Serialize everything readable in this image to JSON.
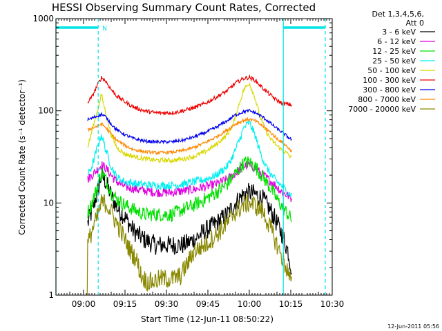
{
  "chart_data": {
    "type": "line",
    "title": "HESSI Observing Summary Count Rates, Corrected",
    "xlabel": "Start Time (12-Jun-11 08:50:22)",
    "ylabel": "Corrected Count Rate (s⁻¹ detector⁻¹)",
    "yscale": "log",
    "ylim": [
      1,
      1000
    ],
    "xlim_minutes_after_0850": [
      0,
      100
    ],
    "x_ticks": [
      {
        "label": "09:00",
        "t": 10
      },
      {
        "label": "09:15",
        "t": 25
      },
      {
        "label": "09:30",
        "t": 40
      },
      {
        "label": "09:45",
        "t": 55
      },
      {
        "label": "10:00",
        "t": 70
      },
      {
        "label": "10:15",
        "t": 85
      },
      {
        "label": "10:30",
        "t": 100
      }
    ],
    "y_ticks": [
      {
        "label": "1",
        "v": 1
      },
      {
        "label": "10",
        "v": 10
      },
      {
        "label": "100",
        "v": 100
      },
      {
        "label": "1000",
        "v": 1000
      }
    ],
    "legend_header": [
      "Det 1,3,4,5,6,",
      "Att 0"
    ],
    "legend_position": "top-right, outside plot",
    "marker_label": "N",
    "time_markers": [
      {
        "t": 0.0,
        "style": "solid",
        "color": "#00e5e5"
      },
      {
        "t": 15.3,
        "style": "dashed",
        "color": "#00e5e5"
      },
      {
        "t": 82.3,
        "style": "solid",
        "color": "#00e5e5"
      },
      {
        "t": 97.5,
        "style": "dashed",
        "color": "#00e5e5"
      }
    ],
    "top_bars": [
      {
        "t0": 0,
        "t1": 15.3,
        "v": 800,
        "color": "#00e5e5"
      },
      {
        "t0": 82.3,
        "t1": 97.5,
        "v": 800,
        "color": "#00e5e5"
      }
    ],
    "data_start_t": 11.3,
    "data_end_t": 85.5,
    "series": [
      {
        "name": "3 - 6 keV",
        "color": "#000000",
        "noise": 0.25,
        "points": [
          [
            11.5,
            6
          ],
          [
            13,
            8
          ],
          [
            15,
            13
          ],
          [
            16.5,
            20
          ],
          [
            18,
            17
          ],
          [
            20,
            12
          ],
          [
            22,
            9
          ],
          [
            25,
            7
          ],
          [
            28,
            5
          ],
          [
            32,
            4
          ],
          [
            36,
            3.5
          ],
          [
            42,
            3.5
          ],
          [
            46,
            3.5
          ],
          [
            50,
            4
          ],
          [
            54,
            5
          ],
          [
            58,
            6
          ],
          [
            62,
            7.5
          ],
          [
            65,
            10
          ],
          [
            68,
            12.5
          ],
          [
            70,
            13
          ],
          [
            72,
            12.5
          ],
          [
            75,
            11
          ],
          [
            78,
            8
          ],
          [
            80,
            6
          ],
          [
            82,
            4.5
          ],
          [
            84,
            3
          ],
          [
            85.5,
            1.8
          ]
        ]
      },
      {
        "name": "6 - 12 keV",
        "color": "#e000e0",
        "noise": 0.12,
        "points": [
          [
            11.5,
            18
          ],
          [
            13,
            20
          ],
          [
            15,
            23
          ],
          [
            16.5,
            26
          ],
          [
            18,
            24
          ],
          [
            20,
            20
          ],
          [
            22,
            17
          ],
          [
            25,
            15
          ],
          [
            30,
            14
          ],
          [
            36,
            13
          ],
          [
            42,
            13
          ],
          [
            46,
            13.5
          ],
          [
            50,
            14
          ],
          [
            54,
            15
          ],
          [
            58,
            16
          ],
          [
            62,
            18
          ],
          [
            65,
            21
          ],
          [
            68,
            25
          ],
          [
            70,
            26
          ],
          [
            72,
            24
          ],
          [
            75,
            20
          ],
          [
            78,
            17
          ],
          [
            80,
            15
          ],
          [
            82,
            13
          ],
          [
            84,
            12
          ],
          [
            85.5,
            11
          ]
        ]
      },
      {
        "name": "12 - 25 keV",
        "color": "#00e000",
        "noise": 0.18,
        "points": [
          [
            11.5,
            8
          ],
          [
            13,
            10
          ],
          [
            15,
            15
          ],
          [
            16.5,
            22
          ],
          [
            18,
            18
          ],
          [
            20,
            13
          ],
          [
            22,
            11
          ],
          [
            25,
            9.5
          ],
          [
            28,
            8.5
          ],
          [
            32,
            7.5
          ],
          [
            36,
            7.5
          ],
          [
            42,
            7.5
          ],
          [
            46,
            8.5
          ],
          [
            50,
            9.5
          ],
          [
            54,
            11
          ],
          [
            58,
            13
          ],
          [
            62,
            16
          ],
          [
            65,
            21
          ],
          [
            68,
            27
          ],
          [
            70,
            28
          ],
          [
            72,
            25
          ],
          [
            75,
            19
          ],
          [
            78,
            14
          ],
          [
            80,
            11
          ],
          [
            82,
            9
          ],
          [
            84,
            7.5
          ],
          [
            85.5,
            6.5
          ]
        ]
      },
      {
        "name": "25 - 50 keV",
        "color": "#00f0f0",
        "noise": 0.1,
        "points": [
          [
            11.5,
            20
          ],
          [
            13,
            25
          ],
          [
            15,
            40
          ],
          [
            16.5,
            55
          ],
          [
            18,
            38
          ],
          [
            20,
            25
          ],
          [
            22,
            19
          ],
          [
            25,
            17
          ],
          [
            30,
            16
          ],
          [
            36,
            15.5
          ],
          [
            42,
            15.5
          ],
          [
            46,
            16
          ],
          [
            50,
            17
          ],
          [
            54,
            18
          ],
          [
            58,
            20
          ],
          [
            62,
            25
          ],
          [
            64,
            32
          ],
          [
            66,
            45
          ],
          [
            68,
            65
          ],
          [
            70,
            75
          ],
          [
            72,
            55
          ],
          [
            74,
            35
          ],
          [
            76,
            25
          ],
          [
            78,
            20
          ],
          [
            80,
            17
          ],
          [
            82,
            15
          ],
          [
            84,
            13
          ],
          [
            85.5,
            12
          ]
        ]
      },
      {
        "name": "50 - 100 keV",
        "color": "#d8d800",
        "noise": 0.06,
        "points": [
          [
            11.5,
            40
          ],
          [
            13,
            60
          ],
          [
            15,
            100
          ],
          [
            16.5,
            150
          ],
          [
            18,
            95
          ],
          [
            20,
            55
          ],
          [
            22,
            40
          ],
          [
            25,
            34
          ],
          [
            30,
            31
          ],
          [
            36,
            29
          ],
          [
            42,
            29
          ],
          [
            46,
            30
          ],
          [
            50,
            32
          ],
          [
            54,
            36
          ],
          [
            58,
            43
          ],
          [
            62,
            55
          ],
          [
            64,
            70
          ],
          [
            66,
            110
          ],
          [
            68,
            170
          ],
          [
            70,
            200
          ],
          [
            72,
            140
          ],
          [
            74,
            85
          ],
          [
            76,
            60
          ],
          [
            78,
            48
          ],
          [
            80,
            42
          ],
          [
            82,
            37
          ],
          [
            84,
            34
          ],
          [
            85.5,
            30
          ]
        ]
      },
      {
        "name": "100 - 300 keV",
        "color": "#ee0000",
        "noise": 0.05,
        "points": [
          [
            11.5,
            125
          ],
          [
            13,
            140
          ],
          [
            15,
            190
          ],
          [
            16.5,
            230
          ],
          [
            18,
            210
          ],
          [
            20,
            170
          ],
          [
            22,
            145
          ],
          [
            25,
            125
          ],
          [
            28,
            110
          ],
          [
            32,
            100
          ],
          [
            36,
            95
          ],
          [
            42,
            95
          ],
          [
            46,
            100
          ],
          [
            50,
            108
          ],
          [
            54,
            120
          ],
          [
            58,
            140
          ],
          [
            62,
            165
          ],
          [
            65,
            200
          ],
          [
            68,
            225
          ],
          [
            70,
            230
          ],
          [
            72,
            215
          ],
          [
            75,
            175
          ],
          [
            78,
            145
          ],
          [
            80,
            130
          ],
          [
            82,
            120
          ],
          [
            84,
            118
          ],
          [
            85.5,
            115
          ]
        ]
      },
      {
        "name": "300 - 800 keV",
        "color": "#0000ee",
        "noise": 0.04,
        "points": [
          [
            11.5,
            80
          ],
          [
            13,
            83
          ],
          [
            15,
            88
          ],
          [
            16.5,
            92
          ],
          [
            18,
            86
          ],
          [
            20,
            72
          ],
          [
            22,
            62
          ],
          [
            25,
            55
          ],
          [
            28,
            50
          ],
          [
            32,
            47
          ],
          [
            36,
            46
          ],
          [
            42,
            46
          ],
          [
            46,
            48
          ],
          [
            50,
            52
          ],
          [
            54,
            58
          ],
          [
            58,
            66
          ],
          [
            62,
            78
          ],
          [
            65,
            90
          ],
          [
            68,
            98
          ],
          [
            70,
            100
          ],
          [
            72,
            96
          ],
          [
            75,
            85
          ],
          [
            78,
            72
          ],
          [
            80,
            64
          ],
          [
            82,
            58
          ],
          [
            84,
            52
          ],
          [
            85.5,
            48
          ]
        ]
      },
      {
        "name": "800 - 7000 keV",
        "color": "#ff8800",
        "noise": 0.04,
        "points": [
          [
            11.5,
            62
          ],
          [
            13,
            65
          ],
          [
            15,
            68
          ],
          [
            16.5,
            72
          ],
          [
            18,
            66
          ],
          [
            20,
            56
          ],
          [
            22,
            48
          ],
          [
            25,
            42
          ],
          [
            28,
            38
          ],
          [
            32,
            36
          ],
          [
            36,
            35
          ],
          [
            42,
            35.5
          ],
          [
            46,
            37
          ],
          [
            50,
            40
          ],
          [
            54,
            45
          ],
          [
            58,
            52
          ],
          [
            62,
            62
          ],
          [
            65,
            72
          ],
          [
            68,
            79
          ],
          [
            70,
            81
          ],
          [
            72,
            78
          ],
          [
            75,
            68
          ],
          [
            78,
            57
          ],
          [
            80,
            50
          ],
          [
            82,
            45
          ],
          [
            84,
            40
          ],
          [
            85.5,
            36
          ]
        ]
      },
      {
        "name": "7000 - 20000 keV",
        "color": "#888800",
        "noise": 0.25,
        "points": [
          [
            11.3,
            1
          ],
          [
            11.5,
            3.5
          ],
          [
            13,
            5
          ],
          [
            15,
            7
          ],
          [
            16.5,
            10
          ],
          [
            18,
            10
          ],
          [
            20,
            8
          ],
          [
            22,
            6
          ],
          [
            25,
            4
          ],
          [
            27,
            3
          ],
          [
            29,
            2.5
          ],
          [
            31,
            1.6
          ],
          [
            33,
            1.4
          ],
          [
            35,
            1.4
          ],
          [
            38,
            1.5
          ],
          [
            42,
            1.5
          ],
          [
            45,
            1.6
          ],
          [
            48,
            2.3
          ],
          [
            50,
            3
          ],
          [
            54,
            3.5
          ],
          [
            58,
            4.5
          ],
          [
            62,
            6
          ],
          [
            65,
            8
          ],
          [
            68,
            9.5
          ],
          [
            70,
            10
          ],
          [
            72,
            9.5
          ],
          [
            75,
            8
          ],
          [
            78,
            5
          ],
          [
            80,
            3.5
          ],
          [
            82,
            2.5
          ],
          [
            84,
            1.8
          ],
          [
            85.5,
            1.2
          ]
        ]
      }
    ]
  },
  "timestamp": "12-Jun-2011 05:56"
}
